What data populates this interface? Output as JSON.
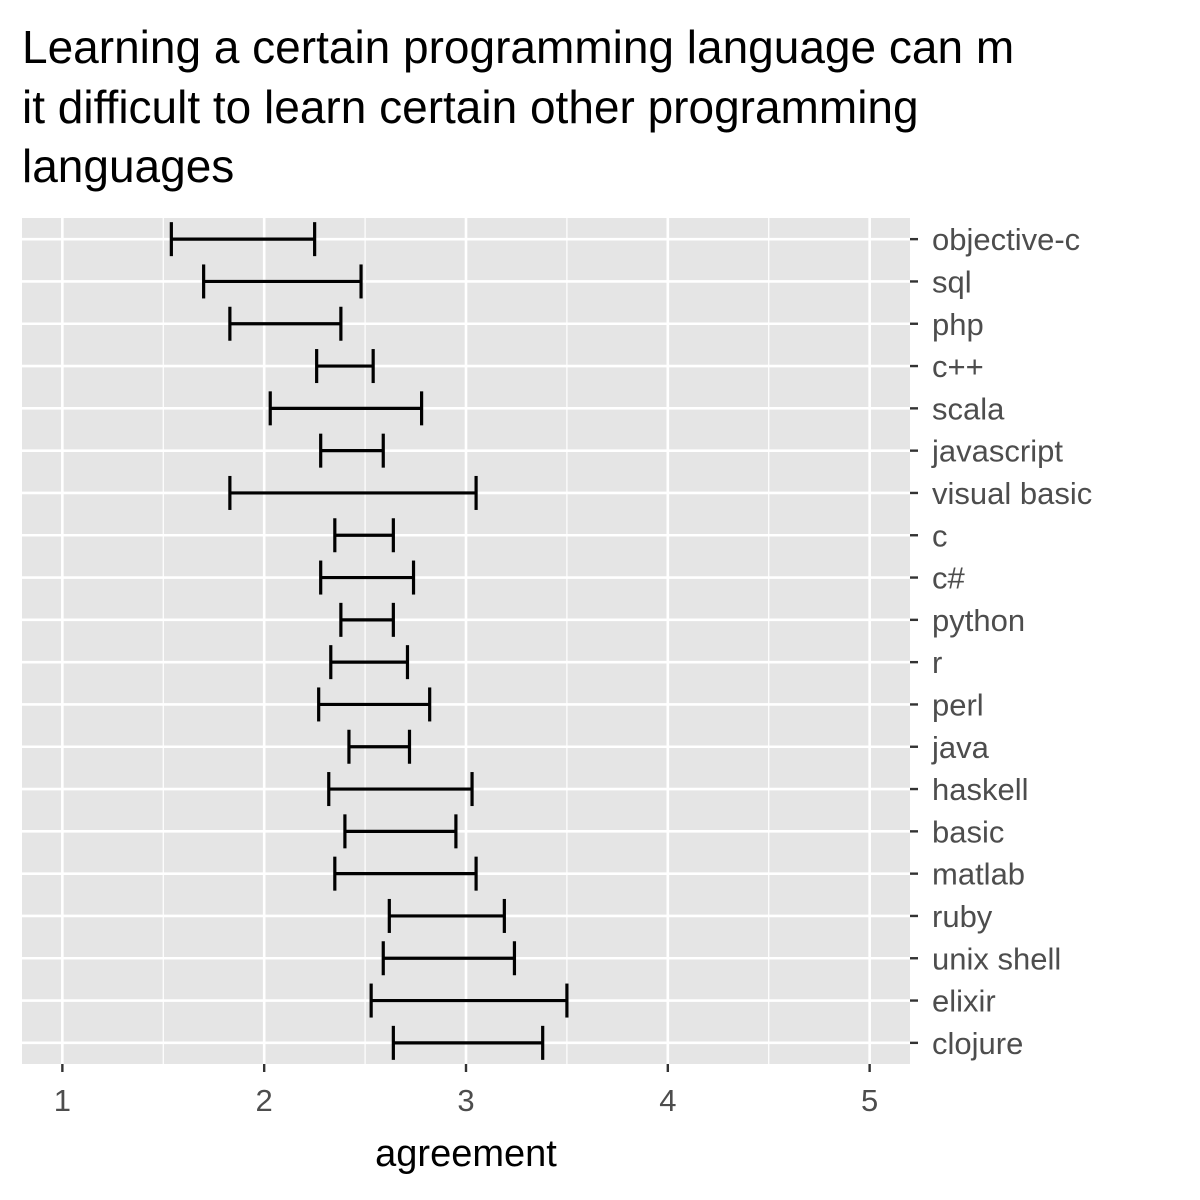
{
  "chart_data": {
    "type": "errorbar",
    "title_lines": [
      "Learning a certain programming language can m",
      "it difficult to learn certain other programming",
      "languages"
    ],
    "xlabel": "agreement",
    "ylabel": "",
    "xlim": [
      0.8,
      5.2
    ],
    "x_ticks": [
      "1",
      "2",
      "3",
      "4",
      "5"
    ],
    "grid": true,
    "panel_color": "#e5e5e5",
    "categories": [
      "objective-c",
      "sql",
      "php",
      "c++",
      "scala",
      "javascript",
      "visual basic",
      "c",
      "c#",
      "python",
      "r",
      "perl",
      "java",
      "haskell",
      "basic",
      "matlab",
      "ruby",
      "unix shell",
      "elixir",
      "clojure"
    ],
    "lower": [
      1.54,
      1.7,
      1.83,
      2.26,
      2.03,
      2.28,
      1.83,
      2.35,
      2.28,
      2.38,
      2.33,
      2.27,
      2.42,
      2.32,
      2.4,
      2.35,
      2.62,
      2.59,
      2.53,
      2.64
    ],
    "upper": [
      2.25,
      2.48,
      2.38,
      2.54,
      2.78,
      2.59,
      3.05,
      2.64,
      2.74,
      2.64,
      2.71,
      2.82,
      2.72,
      3.03,
      2.95,
      3.05,
      3.19,
      3.24,
      3.5,
      3.38
    ]
  }
}
